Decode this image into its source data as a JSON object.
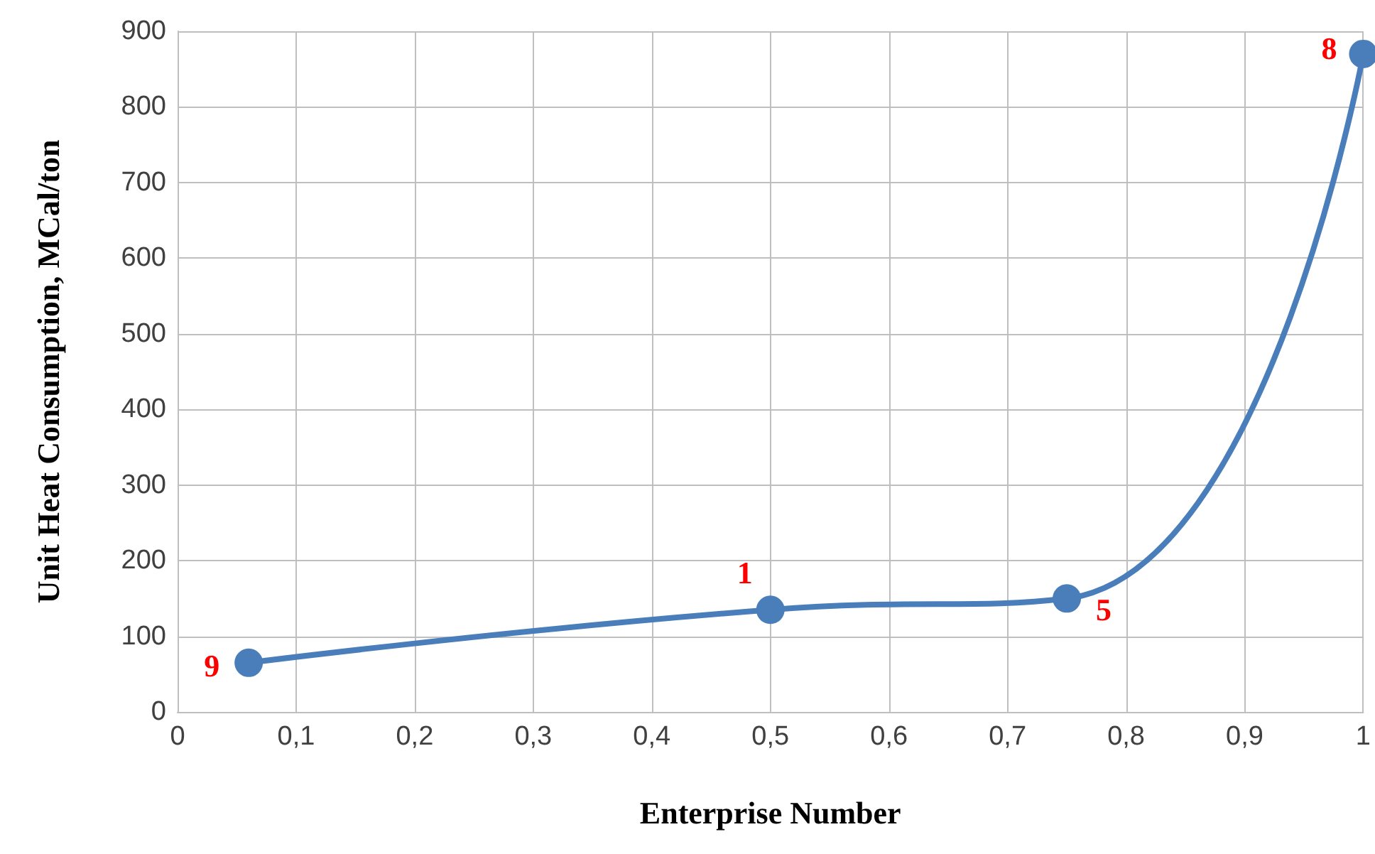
{
  "chart_data": {
    "type": "line",
    "xlabel": "Enterprise Number",
    "ylabel": "Unit Heat Consumption, MCal/ton",
    "x": [
      0.06,
      0.5,
      0.75,
      1
    ],
    "series": [
      {
        "color": "#4a7ebb",
        "values": [
          65,
          135,
          150,
          870
        ]
      }
    ],
    "xlim": [
      0,
      1
    ],
    "xticks": [
      0,
      {
        "value": 0.1,
        "label": "0,1"
      },
      {
        "value": 0.2,
        "label": "0,2"
      },
      {
        "value": 0.3,
        "label": "0,3"
      },
      {
        "value": 0.4,
        "label": "0,4"
      },
      {
        "value": 0.5,
        "label": "0,5"
      },
      {
        "value": 0.6,
        "label": "0,6"
      },
      {
        "value": 0.7,
        "label": "0,7"
      },
      {
        "value": 0.8,
        "label": "0,8"
      },
      {
        "value": 0.9,
        "label": "0,9"
      },
      1
    ],
    "ylim": [
      0,
      900
    ],
    "yticks": [
      0,
      100,
      200,
      300,
      400,
      500,
      600,
      700,
      800,
      900
    ],
    "grid": true,
    "marker": "circle",
    "line_style": "solid",
    "annotations": [
      {
        "text": "9",
        "x": 0.06,
        "y": 65
      },
      {
        "text": "1",
        "x": 0.5,
        "y": 135
      },
      {
        "text": "5",
        "x": 0.75,
        "y": 150
      },
      {
        "text": "8",
        "x": 1,
        "y": 870
      }
    ]
  }
}
